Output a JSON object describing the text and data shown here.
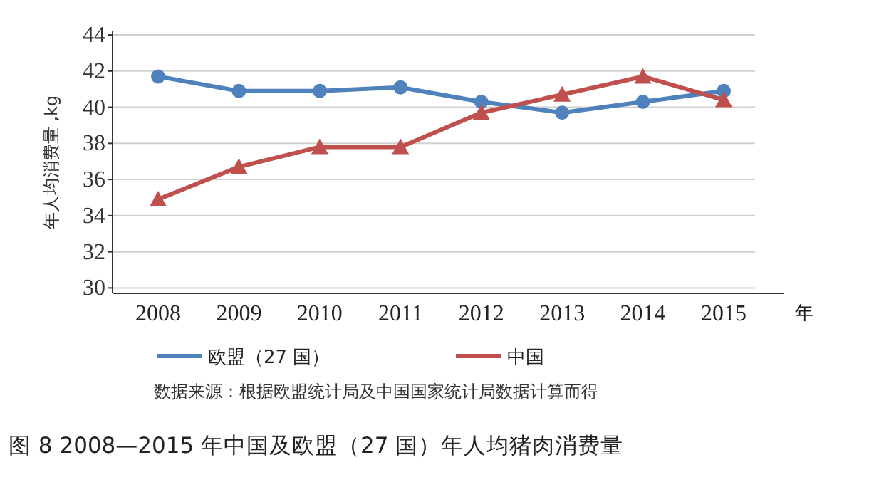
{
  "chart_data": {
    "type": "line",
    "title": "图 8 2008—2015 年中国及欧盟（27 国）年人均猪肉消费量",
    "xlabel": "年",
    "ylabel": "年人均消费量 ,kg",
    "annotations": [
      "数据来源：根据欧盟统计局及中国国家统计局数据计算而得"
    ],
    "categories": [
      "2008",
      "2009",
      "2010",
      "2011",
      "2012",
      "2013",
      "2014",
      "2015"
    ],
    "series": [
      {
        "name": "欧盟（27 国）",
        "color": "#4f81bd",
        "marker": "circle",
        "values": [
          41.7,
          40.9,
          40.9,
          41.1,
          40.3,
          39.7,
          40.3,
          40.9
        ]
      },
      {
        "name": "中国",
        "color": "#c0504d",
        "marker": "triangle",
        "values": [
          34.9,
          36.7,
          37.8,
          37.8,
          39.7,
          40.7,
          41.7,
          40.4
        ]
      }
    ],
    "ylim": [
      29.7,
      44.2
    ],
    "yticks": [
      30,
      32,
      34,
      36,
      38,
      40,
      42,
      44
    ],
    "grid": "y",
    "legend": "bottom",
    "line_style": "solid"
  }
}
